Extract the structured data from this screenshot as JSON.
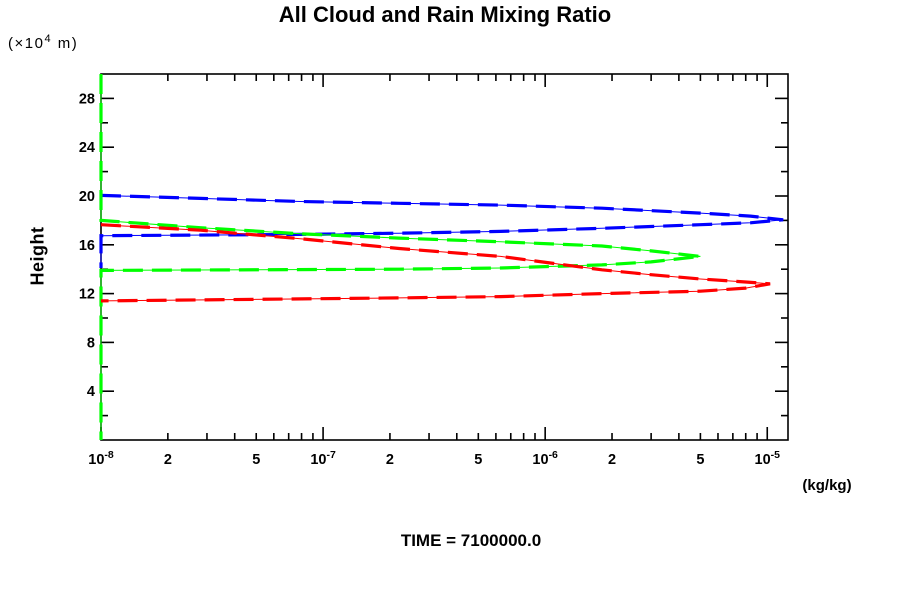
{
  "figure": {
    "title": "All Cloud and Rain Mixing Ratio",
    "y_unit": {
      "prefix": "(×10",
      "sup": "4",
      "suffix": " m)"
    },
    "y_axis_label": "Height",
    "x_unit": "(kg/kg)",
    "time_label": "TIME = 7100000.0"
  },
  "chart_data": {
    "type": "line",
    "title": "All Cloud and Rain Mixing Ratio",
    "xlabel": "(kg/kg)",
    "ylabel": "Height (x10^4 m)",
    "annotation": "TIME = 7100000.0",
    "x_scale": "log",
    "xlim": [
      1e-08,
      1.24e-05
    ],
    "ylim": [
      0,
      30
    ],
    "grid": false,
    "legend": "none",
    "y_major_ticks": [
      4,
      8,
      12,
      16,
      20,
      24,
      28
    ],
    "y_minor_step": 2,
    "x_ticks": [
      {
        "value": 1e-08,
        "base": "10",
        "exp": "-8"
      },
      {
        "value": 2e-08,
        "base": "2"
      },
      {
        "value": 5e-08,
        "base": "5"
      },
      {
        "value": 1e-07,
        "base": "10",
        "exp": "-7"
      },
      {
        "value": 2e-07,
        "base": "2"
      },
      {
        "value": 5e-07,
        "base": "5"
      },
      {
        "value": 1e-06,
        "base": "10",
        "exp": "-6"
      },
      {
        "value": 2e-06,
        "base": "2"
      },
      {
        "value": 5e-06,
        "base": "5"
      },
      {
        "value": 1e-05,
        "base": "10",
        "exp": "-5"
      }
    ],
    "series": [
      {
        "name": "blue-profile",
        "color": "#0000ff",
        "peak": {
          "value": 1.18e-05,
          "height": 18.0
        },
        "points": [
          [
            1e-08,
            20.05
          ],
          [
            2.8e-08,
            19.8
          ],
          [
            7.9e-08,
            19.55
          ],
          [
            2.2e-07,
            19.4
          ],
          [
            6.3e-07,
            19.25
          ],
          [
            1.8e-06,
            19.0
          ],
          [
            5e-06,
            18.6
          ],
          [
            8.4e-06,
            18.35
          ],
          [
            1.18e-05,
            18.05
          ],
          [
            8.4e-06,
            17.8
          ],
          [
            5e-06,
            17.65
          ],
          [
            1.8e-06,
            17.35
          ],
          [
            6.3e-07,
            17.1
          ],
          [
            2.2e-07,
            16.95
          ],
          [
            7.9e-08,
            16.85
          ],
          [
            1e-08,
            16.75
          ],
          [
            1e-08,
            14.1
          ]
        ]
      },
      {
        "name": "green-profile",
        "color": "#00ff00",
        "peak": {
          "value": 5e-06,
          "height": 15.0
        },
        "points": [
          [
            1e-08,
            30.0
          ],
          [
            1e-08,
            18.0
          ],
          [
            2.8e-08,
            17.4
          ],
          [
            7.9e-08,
            16.9
          ],
          [
            2.2e-07,
            16.55
          ],
          [
            6.3e-07,
            16.25
          ],
          [
            1.8e-06,
            15.9
          ],
          [
            3e-06,
            15.5
          ],
          [
            5e-06,
            15.05
          ],
          [
            3e-06,
            14.6
          ],
          [
            1.8e-06,
            14.35
          ],
          [
            6.3e-07,
            14.1
          ],
          [
            2.2e-07,
            14.0
          ],
          [
            1e-08,
            13.9
          ],
          [
            1e-08,
            0.0
          ]
        ]
      },
      {
        "name": "red-profile",
        "color": "#ff0000",
        "peak": {
          "value": 1.03e-05,
          "height": 12.8
        },
        "points": [
          [
            1e-08,
            17.65
          ],
          [
            2.8e-08,
            17.2
          ],
          [
            7.9e-08,
            16.5
          ],
          [
            2.2e-07,
            15.7
          ],
          [
            6.3e-07,
            15.05
          ],
          [
            1.8e-06,
            13.95
          ],
          [
            3e-06,
            13.55
          ],
          [
            5e-06,
            13.2
          ],
          [
            8e-06,
            12.95
          ],
          [
            1.03e-05,
            12.8
          ],
          [
            8e-06,
            12.45
          ],
          [
            5e-06,
            12.2
          ],
          [
            1.8e-06,
            12.0
          ],
          [
            6.3e-07,
            11.75
          ],
          [
            2.2e-07,
            11.65
          ],
          [
            1e-08,
            11.4
          ]
        ]
      }
    ]
  }
}
